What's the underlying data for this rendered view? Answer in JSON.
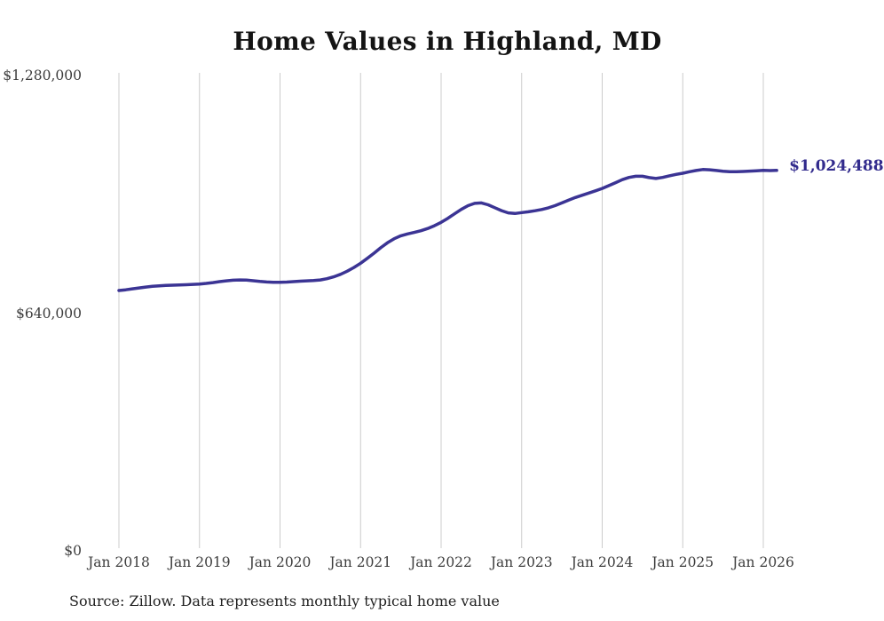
{
  "chart_data": {
    "type": "line",
    "title": "Home Values in Highland, MD",
    "source": "Source: Zillow. Data represents monthly typical home value",
    "end_label": "$1,024,488",
    "line_color": "#3b3494",
    "grid_color": "#cccccc",
    "legend": "none",
    "grid": "vertical-only",
    "x_start": "Jan 2018",
    "x_end": "Mar 2026",
    "categories": [
      "Jan 2018",
      "Jan 2019",
      "Jan 2020",
      "Jan 2021",
      "Jan 2022",
      "Jan 2023",
      "Jan 2024",
      "Jan 2025",
      "Jan 2026"
    ],
    "yticks": [
      {
        "label": "$0",
        "value": 0
      },
      {
        "label": "$640,000",
        "value": 640000
      },
      {
        "label": "$1,280,000",
        "value": 1280000
      }
    ],
    "ylim": [
      0,
      1280000
    ],
    "series": [
      {
        "name": "Typical home value (monthly)",
        "values": [
          701000,
          703000,
          705500,
          708000,
          710300,
          712200,
          713600,
          714600,
          715300,
          715800,
          716500,
          717400,
          718500,
          720200,
          722400,
          724900,
          727200,
          728800,
          729600,
          729000,
          727300,
          725400,
          723900,
          723100,
          723000,
          723800,
          725000,
          726200,
          727000,
          727800,
          729500,
          732800,
          737800,
          744500,
          753000,
          763000,
          774500,
          787500,
          801500,
          816000,
          829500,
          840500,
          848500,
          853500,
          857500,
          862000,
          868000,
          875500,
          884500,
          895500,
          907500,
          919500,
          929500,
          935800,
          937000,
          932000,
          924000,
          916000,
          910000,
          908500,
          910800,
          913000,
          915800,
          919200,
          923800,
          929800,
          937000,
          944500,
          951500,
          957500,
          963500,
          969500,
          976000,
          983500,
          991500,
          999500,
          1005500,
          1008800,
          1008800,
          1005200,
          1002800,
          1005500,
          1009800,
          1013800,
          1016800,
          1020800,
          1024300,
          1026800,
          1026200,
          1024200,
          1022200,
          1021000,
          1020800,
          1021500,
          1022500,
          1023500,
          1024800,
          1023900,
          1024488
        ]
      }
    ]
  }
}
